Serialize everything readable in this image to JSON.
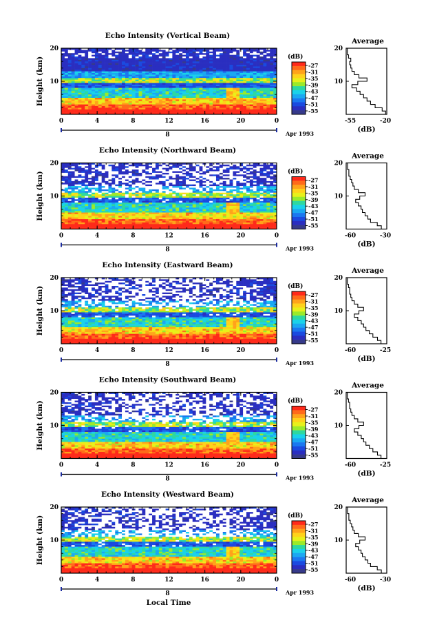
{
  "colorbar": {
    "unit": "(dB)",
    "labels": [
      "-27",
      "-31",
      "-35",
      "-39",
      "-43",
      "-47",
      "-51",
      "-55"
    ],
    "colors": [
      "#ff2a1a",
      "#ff6a1a",
      "#ffa31a",
      "#ffd21a",
      "#e8f01a",
      "#9bea2a",
      "#2ed8a0",
      "#1ad2ea",
      "#1aa8f2",
      "#1a78f0",
      "#1a4ae0",
      "#2a2ec0",
      "#363a8a"
    ]
  },
  "common": {
    "ylabel": "Height (km)",
    "xticks": [
      "0",
      "4",
      "8",
      "12",
      "16",
      "20",
      "0"
    ],
    "date_marker": "8",
    "date_label": "Apr 1993",
    "yticks": [
      "20",
      "10"
    ],
    "avg_title": "Average",
    "avg_xlabel": "(dB)",
    "xlabel": "Local Time"
  },
  "chart_data": [
    {
      "type": "heatmap",
      "title": "Echo Intensity (Vertical Beam)",
      "x_range": [
        0,
        24
      ],
      "y_range": [
        0,
        20
      ],
      "color_range": [
        -55,
        -27
      ],
      "average": {
        "type": "line",
        "xlim": [
          -55,
          -20
        ],
        "xtick_labels": [
          "-55",
          "-20"
        ],
        "height": [
          1,
          2,
          3,
          4,
          5,
          6,
          7,
          8,
          9,
          10,
          11,
          12,
          13,
          14,
          15,
          16,
          17,
          18,
          19,
          20
        ],
        "value": [
          -21,
          -24,
          -30,
          -34,
          -37,
          -40,
          -43,
          -46,
          -50,
          -45,
          -37,
          -44,
          -48,
          -50,
          -51,
          -52,
          -51,
          -53,
          -54,
          -54
        ]
      }
    },
    {
      "type": "heatmap",
      "title": "Echo Intensity (Northward Beam)",
      "x_range": [
        0,
        24
      ],
      "y_range": [
        0,
        20
      ],
      "color_range": [
        -55,
        -27
      ],
      "average": {
        "type": "line",
        "xlim": [
          -60,
          -30
        ],
        "xtick_labels": [
          "-60",
          "-30"
        ],
        "height": [
          1,
          2,
          3,
          4,
          5,
          6,
          7,
          8,
          9,
          10,
          11,
          12,
          13,
          14,
          15,
          16,
          17,
          18,
          19,
          20
        ],
        "value": [
          -34,
          -37,
          -42,
          -44,
          -46,
          -48,
          -49,
          -51,
          -53,
          -50,
          -46,
          -51,
          -54,
          -55,
          -56,
          -57,
          -58,
          -58,
          -59,
          -59
        ]
      }
    },
    {
      "type": "heatmap",
      "title": "Echo Intensity (Eastward Beam)",
      "x_range": [
        0,
        24
      ],
      "y_range": [
        0,
        20
      ],
      "color_range": [
        -55,
        -27
      ],
      "average": {
        "type": "line",
        "xlim": [
          -60,
          -25
        ],
        "xtick_labels": [
          "-60",
          "-25"
        ],
        "height": [
          1,
          2,
          3,
          4,
          5,
          6,
          7,
          8,
          9,
          10,
          11,
          12,
          13,
          14,
          15,
          16,
          17,
          18,
          19,
          20
        ],
        "value": [
          -30,
          -33,
          -37,
          -40,
          -43,
          -45,
          -47,
          -50,
          -53,
          -49,
          -45,
          -50,
          -53,
          -55,
          -56,
          -57,
          -57,
          -58,
          -59,
          -59
        ]
      }
    },
    {
      "type": "heatmap",
      "title": "Echo Intensity (Southward Beam)",
      "x_range": [
        0,
        24
      ],
      "y_range": [
        0,
        20
      ],
      "color_range": [
        -55,
        -27
      ],
      "average": {
        "type": "line",
        "xlim": [
          -60,
          -25
        ],
        "xtick_labels": [
          "-60",
          "-25"
        ],
        "height": [
          1,
          2,
          3,
          4,
          5,
          6,
          7,
          8,
          9,
          10,
          11,
          12,
          13,
          14,
          15,
          16,
          17,
          18,
          19,
          20
        ],
        "value": [
          -30,
          -33,
          -37,
          -40,
          -43,
          -45,
          -47,
          -50,
          -53,
          -49,
          -45,
          -50,
          -53,
          -55,
          -56,
          -57,
          -57,
          -58,
          -59,
          -59
        ]
      }
    },
    {
      "type": "heatmap",
      "title": "Echo Intensity (Westward Beam)",
      "x_range": [
        0,
        24
      ],
      "y_range": [
        0,
        20
      ],
      "color_range": [
        -55,
        -27
      ],
      "average": {
        "type": "line",
        "xlim": [
          -60,
          -30
        ],
        "xtick_labels": [
          "-60",
          "-30"
        ],
        "height": [
          1,
          2,
          3,
          4,
          5,
          6,
          7,
          8,
          9,
          10,
          11,
          12,
          13,
          14,
          15,
          16,
          17,
          18,
          19,
          20
        ],
        "value": [
          -34,
          -37,
          -42,
          -44,
          -46,
          -48,
          -49,
          -51,
          -53,
          -50,
          -46,
          -51,
          -54,
          -55,
          -56,
          -57,
          -58,
          -58,
          -59,
          -59
        ]
      }
    }
  ]
}
